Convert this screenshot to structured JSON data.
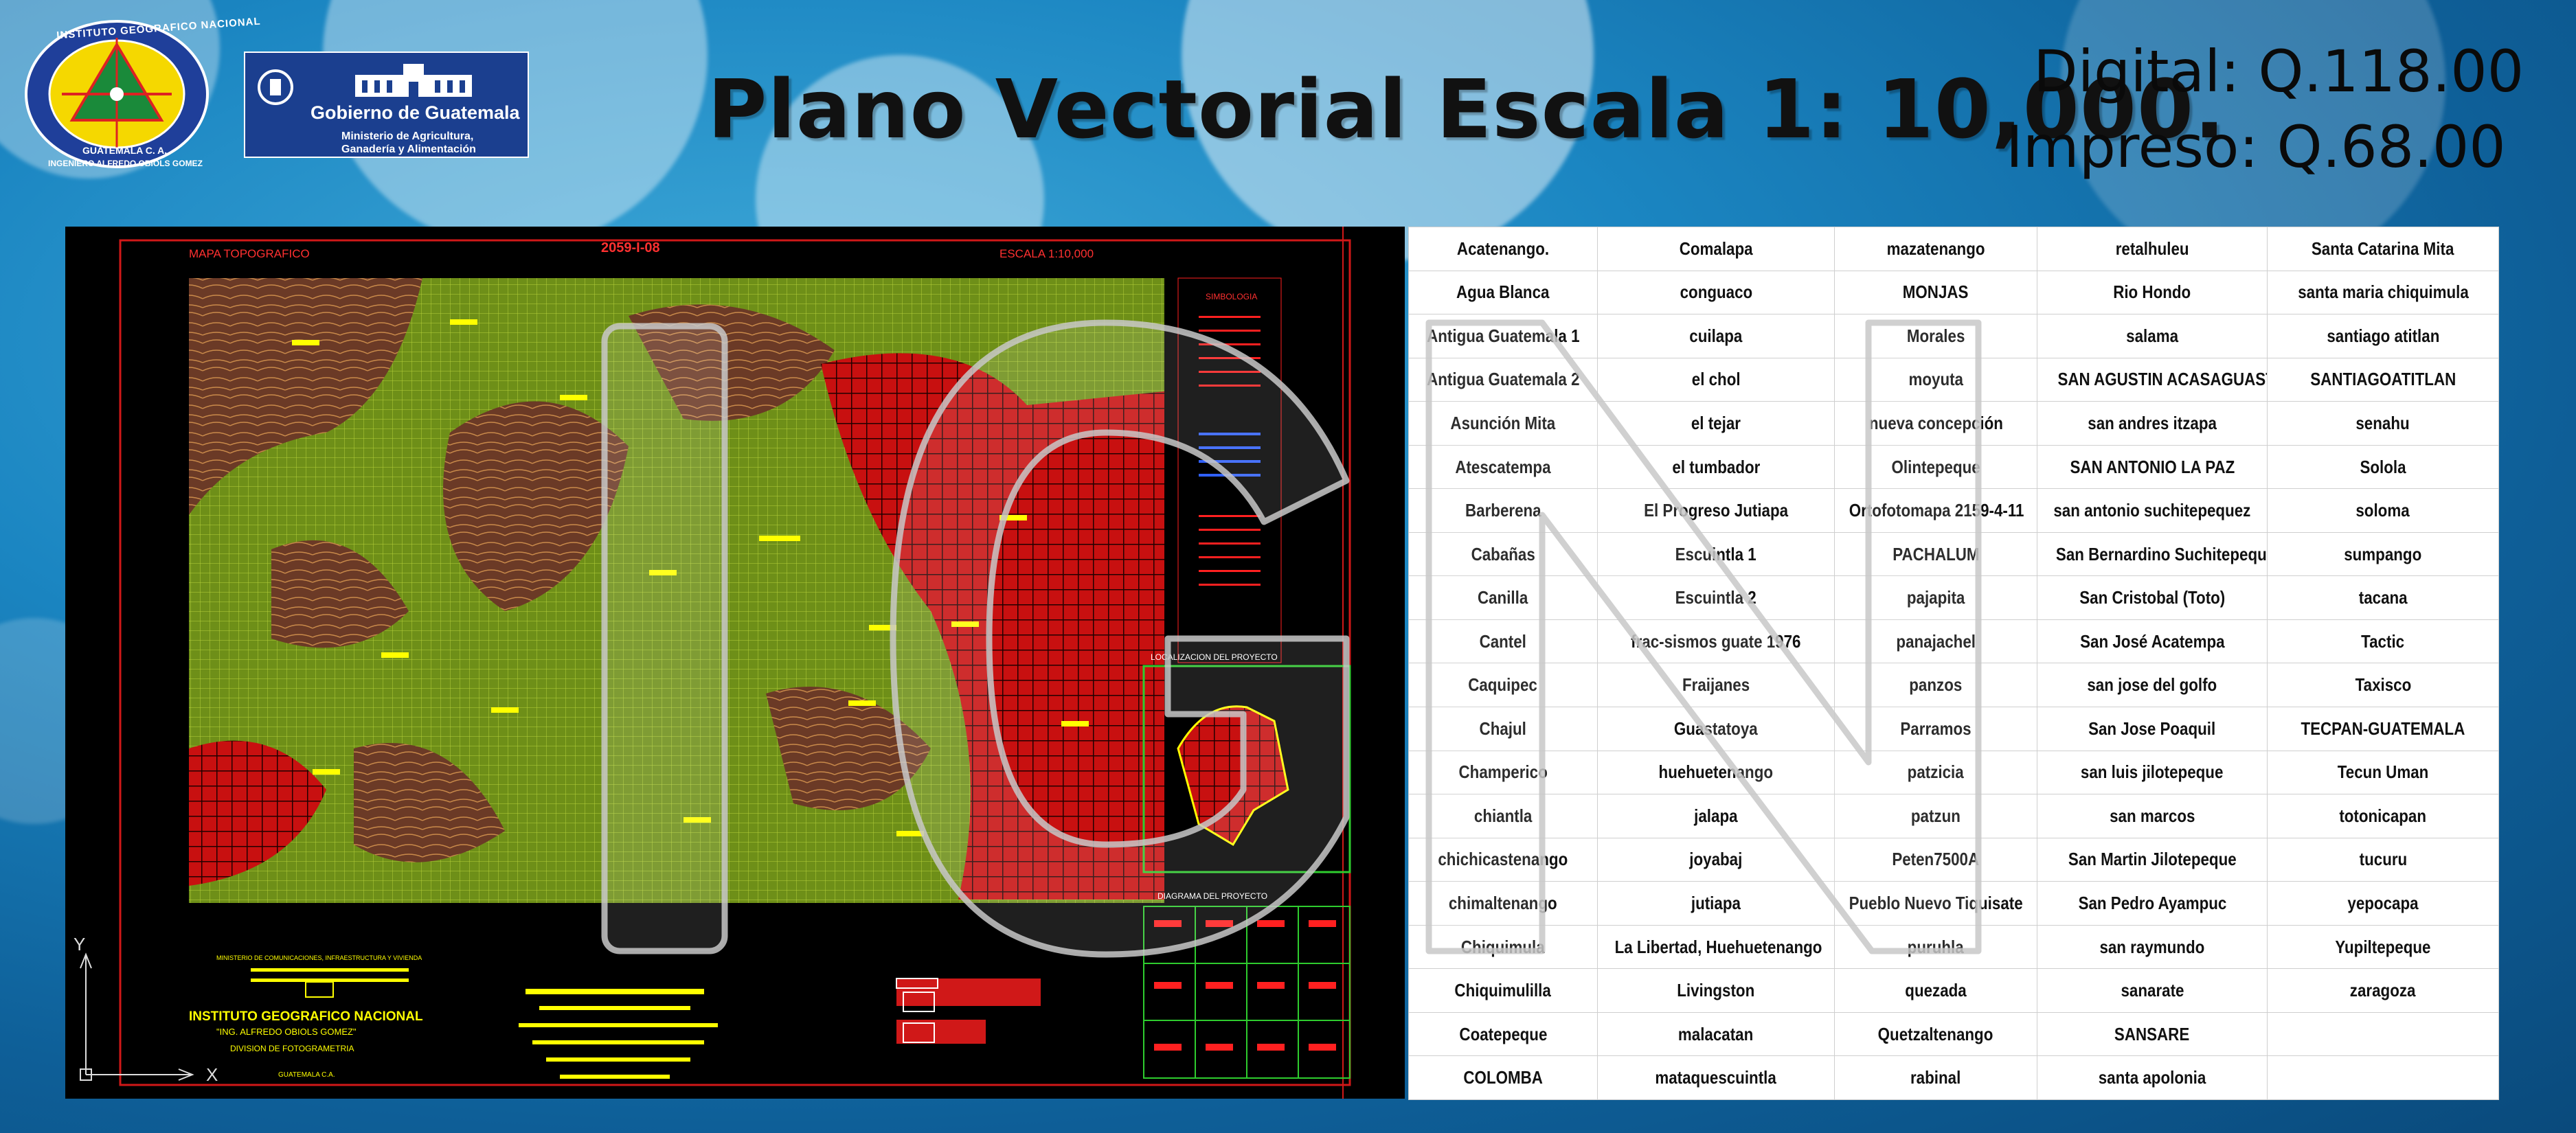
{
  "header": {
    "title": "Plano Vectorial Escala 1: 10,000.",
    "price_digital": "Digital: Q.118.00",
    "price_impreso": "Impreso: Q.68.00"
  },
  "logos": {
    "ign_ring_top": "INSTITUTO GEOGRAFICO NACIONAL",
    "ign_ring_country": "GUATEMALA C. A.",
    "ign_ring_bottom": "INGENIERO ALFREDO OBIOLS GOMEZ",
    "gov_title": "Gobierno de Guatemala",
    "gov_ministry_line1": "Ministerio de Agricultura,",
    "gov_ministry_line2": "Ganadería y Alimentación"
  },
  "map": {
    "sheet_label": "MAPA TOPOGRAFICO",
    "sheet_code": "2059-I-08",
    "scale_label": "ESCALA 1:10,000",
    "legend_title": "SIMBOLOGIA",
    "location_title": "LOCALIZACION DEL PROYECTO",
    "diagram_title": "DIAGRAMA DEL PROYECTO",
    "institute_name": "INSTITUTO GEOGRAFICO NACIONAL",
    "institute_subtitle": "\"ING. ALFREDO OBIOLS GOMEZ\"",
    "institute_division": "DIVISION DE FOTOGRAMETRIA",
    "institute_country": "GUATEMALA C.A.",
    "ministry_text": "MINISTERIO DE COMUNICACIONES, INFRAESTRUCTURA Y VIVIENDA",
    "axis_y": "Y",
    "axis_x": "X"
  },
  "colors": {
    "table_border": "#cfcfcf",
    "map_background": "#000000",
    "contour_green": "#7ea21c",
    "terrain_brown": "#6a3a24",
    "cad_red": "#ff2020",
    "cad_yellow": "#ffff00"
  },
  "places": {
    "columns": [
      [
        "Acatenango.",
        "Agua Blanca",
        "Antigua Guatemala 1",
        "Antigua Guatemala 2",
        "Asunción Mita",
        "Atescatempa",
        "Barberena",
        "Cabañas",
        "Canilla",
        "Cantel",
        "Caquipec",
        "Chajul",
        "Champerico",
        "chiantla",
        "chichicastenango",
        "chimaltenango",
        "Chiquimula",
        "Chiquimulilla",
        "Coatepeque",
        "COLOMBA"
      ],
      [
        "Comalapa",
        "conguaco",
        "cuilapa",
        "el chol",
        "el tejar",
        "el tumbador",
        "El Progreso Jutiapa",
        "Escuintla 1",
        "Escuintla 2",
        "frac-sismos guate 1976",
        "Fraijanes",
        "Guastatoya",
        "huehuetenango",
        "jalapa",
        "joyabaj",
        "jutiapa",
        "La Libertad, Huehuetenango",
        "Livingston",
        "malacatan",
        "mataquescuintla"
      ],
      [
        "mazatenango",
        "MONJAS",
        "Morales",
        "moyuta",
        "nueva concepción",
        "Olintepeque",
        "Ortofotomapa 2159-4-11",
        "PACHALUM",
        "pajapita",
        "panajachel",
        "panzos",
        "Parramos",
        "patzicia",
        "patzun",
        "Peten7500A",
        "Pueblo Nuevo Tiquisate",
        "puruhla",
        "quezada",
        "Quetzaltenango",
        "rabinal"
      ],
      [
        "retalhuleu",
        "Rio Hondo",
        "salama",
        "SAN AGUSTIN ACASAGUASTLAN",
        "san andres itzapa",
        "SAN ANTONIO LA PAZ",
        "san antonio suchitepequez",
        "San Bernardino Suchitepequez",
        "San Cristobal (Toto)",
        "San José Acatempa",
        "san jose del golfo",
        "San Jose Poaquil",
        "san luis jilotepeque",
        "san marcos",
        "San Martin Jilotepeque",
        "San Pedro Ayampuc",
        "san raymundo",
        "sanarate",
        "SANSARE",
        "santa apolonia"
      ],
      [
        "Santa Catarina Mita",
        "santa maria chiquimula",
        "santiago atitlan",
        "SANTIAGOATITLAN",
        "senahu",
        "Solola",
        "soloma",
        "sumpango",
        "tacana",
        "Tactic",
        "Taxisco",
        "TECPAN-GUATEMALA",
        "Tecun Uman",
        "totonicapan",
        "tucuru",
        "yepocapa",
        "Yupiltepeque",
        "zaragoza",
        ""
      ]
    ]
  },
  "watermark": {
    "letters": "IGN"
  }
}
